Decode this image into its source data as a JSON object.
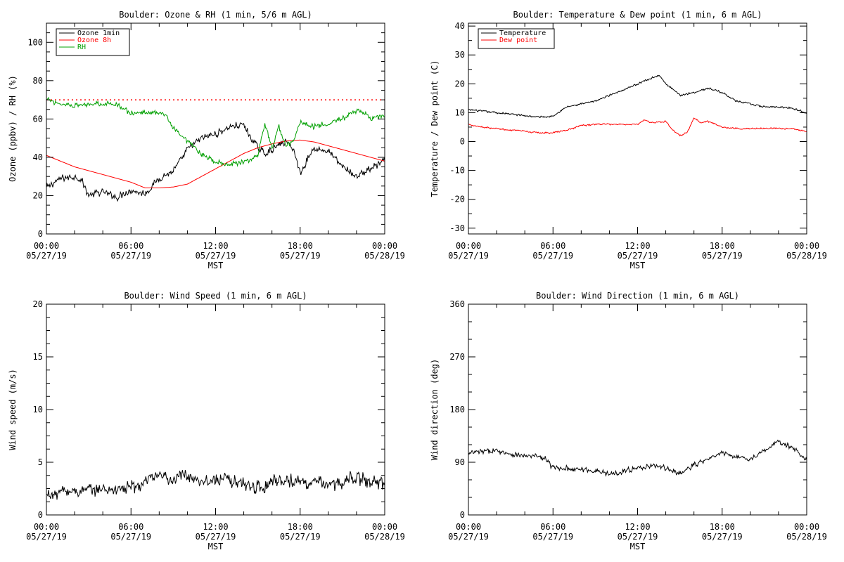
{
  "chart_data": [
    {
      "id": "ozone_rh",
      "type": "line",
      "title": "Boulder: Ozone & RH (1 min, 5/6 m AGL)",
      "xlabel": "MST",
      "ylabel": "Ozone (ppbv) / RH (%)",
      "xlim": [
        0,
        24
      ],
      "ylim": [
        0,
        110
      ],
      "yticks": [
        0,
        20,
        40,
        60,
        80,
        100
      ],
      "xtick_labels": [
        [
          "00:00",
          "05/27/19"
        ],
        [
          "06:00",
          "05/27/19"
        ],
        [
          "12:00",
          "05/27/19"
        ],
        [
          "18:00",
          "05/27/19"
        ],
        [
          "00:00",
          "05/28/19"
        ]
      ],
      "legend_position": "top-left",
      "reference_line": {
        "y": 70,
        "color": "#ff0000",
        "style": "dotted"
      },
      "series": [
        {
          "name": "Ozone 1min",
          "color": "#000000",
          "noise": 2.0,
          "x": [
            0,
            1,
            2,
            2.5,
            3,
            4,
            5,
            6,
            7,
            7.5,
            8,
            9,
            9.5,
            10,
            11,
            12,
            13,
            14,
            14.5,
            15,
            15.5,
            16,
            17,
            17.5,
            18,
            19,
            20,
            21,
            22,
            23,
            24
          ],
          "y": [
            24,
            29,
            30,
            28,
            20,
            22,
            19,
            23,
            21,
            25,
            29,
            33,
            38,
            44,
            50,
            52,
            56,
            57,
            50,
            45,
            42,
            44,
            48,
            45,
            32,
            45,
            43,
            35,
            30,
            34,
            38
          ]
        },
        {
          "name": "Ozone 8h",
          "color": "#ff0000",
          "noise": 0,
          "x": [
            0,
            1,
            2,
            3,
            4,
            5,
            6,
            7,
            8,
            9,
            10,
            11,
            12,
            13,
            14,
            15,
            16,
            17,
            18,
            19,
            20,
            21,
            22,
            23,
            24
          ],
          "y": [
            41,
            38,
            35,
            33,
            31,
            29,
            27,
            24,
            24,
            24.5,
            26,
            30,
            34,
            38,
            42,
            45,
            47,
            48.5,
            49,
            48,
            46,
            44,
            42,
            40,
            38
          ]
        },
        {
          "name": "RH",
          "color": "#00a000",
          "noise": 1.5,
          "x": [
            0,
            1,
            2,
            3,
            4,
            5,
            5.5,
            6,
            7,
            8,
            8.5,
            9,
            10,
            10.5,
            11,
            12,
            13,
            14,
            15,
            15.5,
            16,
            16.5,
            17,
            17.5,
            18,
            19,
            20,
            21,
            22,
            22.5,
            23,
            24
          ],
          "y": [
            70,
            68,
            67,
            68,
            68,
            68,
            65,
            63,
            63,
            64,
            62,
            55,
            48,
            45,
            41,
            38,
            36,
            38,
            40,
            58,
            45,
            56,
            46,
            48,
            58,
            56,
            58,
            60,
            64,
            64,
            60,
            62
          ]
        }
      ]
    },
    {
      "id": "temp_dew",
      "type": "line",
      "title": "Boulder: Temperature & Dew point (1 min, 6 m AGL)",
      "xlabel": "MST",
      "ylabel": "Temperature / Dew point (C)",
      "xlim": [
        0,
        24
      ],
      "ylim": [
        -32,
        41
      ],
      "yticks": [
        -30,
        -20,
        -10,
        0,
        10,
        20,
        30,
        40
      ],
      "xtick_labels": [
        [
          "00:00",
          "05/27/19"
        ],
        [
          "06:00",
          "05/27/19"
        ],
        [
          "12:00",
          "05/27/19"
        ],
        [
          "18:00",
          "05/27/19"
        ],
        [
          "00:00",
          "05/28/19"
        ]
      ],
      "legend_position": "top-left",
      "series": [
        {
          "name": "Temperature",
          "color": "#000000",
          "noise": 0.35,
          "x": [
            0,
            1,
            2,
            3,
            4,
            5,
            5.5,
            6,
            7,
            8,
            9,
            10,
            11,
            12,
            13,
            13.5,
            14,
            15,
            16,
            17,
            18,
            19,
            20,
            21,
            22,
            23,
            24
          ],
          "y": [
            11,
            10.5,
            10,
            9.5,
            9,
            8.5,
            8.5,
            9,
            12,
            13,
            14,
            16,
            18,
            20,
            22,
            23,
            20,
            16,
            17,
            18.5,
            17,
            14,
            13,
            12,
            12,
            11.5,
            10
          ]
        },
        {
          "name": "Dew point",
          "color": "#ff0000",
          "noise": 0.3,
          "x": [
            0,
            1,
            2,
            3,
            4,
            5,
            6,
            7,
            8,
            9,
            10,
            11,
            12,
            12.5,
            13,
            14,
            14.5,
            15,
            15.5,
            16,
            16.5,
            17,
            18,
            19,
            20,
            21,
            22,
            23,
            24
          ],
          "y": [
            6,
            5,
            4.5,
            4,
            3.5,
            3,
            3,
            4,
            5.5,
            6,
            6,
            6,
            6,
            7.5,
            6.5,
            7,
            4,
            2,
            3,
            8,
            6.5,
            7,
            5,
            4.5,
            4.5,
            4.5,
            4.5,
            4.5,
            3.5
          ]
        }
      ]
    },
    {
      "id": "wind_speed",
      "type": "line",
      "title": "Boulder: Wind Speed (1 min, 6 m AGL)",
      "xlabel": "MST",
      "ylabel": "Wind speed (m/s)",
      "xlim": [
        0,
        24
      ],
      "ylim": [
        0,
        20
      ],
      "yticks": [
        0,
        5,
        10,
        15,
        20
      ],
      "xtick_labels": [
        [
          "00:00",
          "05/27/19"
        ],
        [
          "06:00",
          "05/27/19"
        ],
        [
          "12:00",
          "05/27/19"
        ],
        [
          "18:00",
          "05/27/19"
        ],
        [
          "00:00",
          "05/28/19"
        ]
      ],
      "series": [
        {
          "name": "",
          "color": "#000000",
          "noise": 0.7,
          "x": [
            0,
            0.5,
            1,
            2,
            3,
            4,
            5,
            6,
            7,
            7.5,
            8,
            9,
            10,
            10.5,
            11,
            12,
            13,
            14,
            15,
            15.5,
            16,
            17,
            18,
            19,
            20,
            21,
            21.5,
            22,
            23,
            24
          ],
          "y": [
            1.8,
            2.0,
            2.2,
            2.3,
            2.3,
            2.4,
            2.5,
            2.6,
            3.0,
            3.5,
            3.5,
            3.5,
            3.8,
            3.6,
            3.3,
            3.3,
            3.3,
            3.0,
            2.6,
            2.5,
            3.5,
            3.3,
            3.2,
            3.0,
            3.0,
            2.8,
            3.8,
            3.5,
            3.2,
            3.0
          ]
        }
      ]
    },
    {
      "id": "wind_dir",
      "type": "line",
      "title": "Boulder: Wind Direction (1 min, 6 m AGL)",
      "xlabel": "MST",
      "ylabel": "Wind direction (deg)",
      "xlim": [
        0,
        24
      ],
      "ylim": [
        0,
        360
      ],
      "yticks": [
        0,
        90,
        180,
        270,
        360
      ],
      "xtick_labels": [
        [
          "00:00",
          "05/27/19"
        ],
        [
          "06:00",
          "05/27/19"
        ],
        [
          "12:00",
          "05/27/19"
        ],
        [
          "18:00",
          "05/27/19"
        ],
        [
          "00:00",
          "05/28/19"
        ]
      ],
      "series": [
        {
          "name": "",
          "color": "#000000",
          "noise": 5,
          "x": [
            0,
            1,
            2,
            3,
            4,
            5,
            5.5,
            6,
            7,
            8,
            9,
            10,
            11,
            12,
            13,
            14,
            15,
            16,
            17,
            18,
            19,
            20,
            21,
            22,
            23,
            24
          ],
          "y": [
            105,
            108,
            110,
            105,
            100,
            100,
            95,
            80,
            80,
            78,
            75,
            70,
            75,
            80,
            85,
            80,
            70,
            85,
            95,
            105,
            100,
            95,
            110,
            125,
            115,
            95
          ]
        }
      ]
    }
  ]
}
